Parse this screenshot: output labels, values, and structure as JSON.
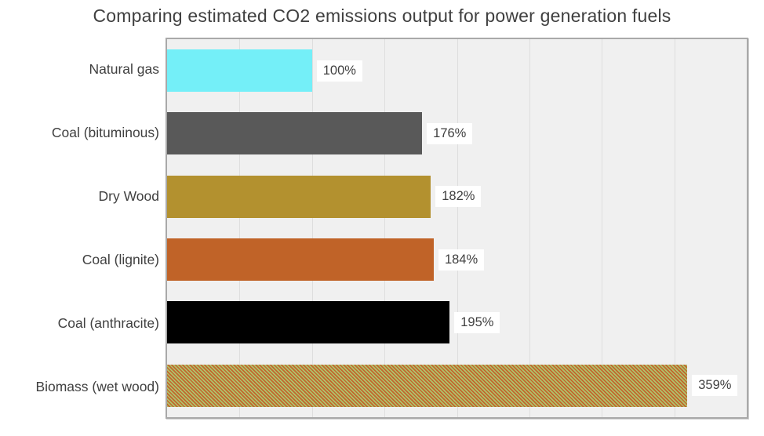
{
  "title": "Comparing estimated CO2 emissions output for power generation fuels",
  "chart_data": {
    "type": "bar",
    "orientation": "horizontal",
    "title": "Comparing estimated CO2 emissions output for power generation fuels",
    "categories": [
      "Natural gas",
      "Coal (bituminous)",
      "Dry Wood",
      "Coal (lignite)",
      "Coal (anthracite)",
      "Biomass (wet wood)"
    ],
    "values": [
      100,
      176,
      182,
      184,
      195,
      359
    ],
    "data_labels": [
      "100%",
      "176%",
      "182%",
      "184%",
      "195%",
      "359%"
    ],
    "xlim": [
      0,
      400
    ],
    "gridline_interval": 50,
    "grid": true,
    "legend": false,
    "xlabel": "",
    "ylabel": "",
    "bar_colors": [
      "#74EFF8",
      "#595959",
      "#B3912F",
      "#C06328",
      "#000000",
      "pattern"
    ],
    "pattern": {
      "style": "diagonal-stripes",
      "stripe_color": "#C2652D",
      "background_color": "#AEC46C"
    }
  },
  "colors": {
    "plot_background": "#F0F0F0",
    "plot_border": "#A9A9A9",
    "gridline": "#DEDEDE",
    "title_text": "#404040",
    "category_text": "#404040",
    "value_label_text": "#3F3F3F",
    "value_label_background": "#FFFFFF"
  }
}
